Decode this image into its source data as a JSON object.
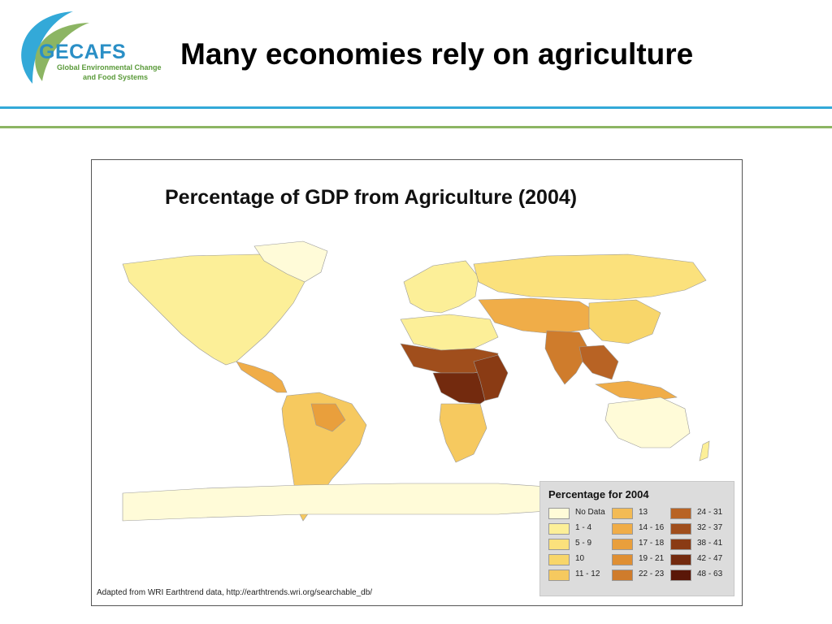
{
  "logo": {
    "word": "GECAFS",
    "line1": "Global Environmental Change",
    "line2": "and Food Systems"
  },
  "slide_title": "Many economies rely on agriculture",
  "map": {
    "title": "Percentage of GDP from Agriculture (2004)",
    "source": "Adapted from WRI Earthtrend data, http://earthtrends.wri.org/searchable_db/",
    "legend": {
      "title": "Percentage for 2004",
      "items": [
        {
          "label": "No Data",
          "color": "#fffbd8"
        },
        {
          "label": "1 - 4",
          "color": "#fcef98"
        },
        {
          "label": "5 - 9",
          "color": "#fbe17c"
        },
        {
          "label": "10",
          "color": "#f8d66a"
        },
        {
          "label": "11 - 12",
          "color": "#f6c95f"
        },
        {
          "label": "13",
          "color": "#f3bb55"
        },
        {
          "label": "14 - 16",
          "color": "#f0ad48"
        },
        {
          "label": "17 - 18",
          "color": "#e99f3c"
        },
        {
          "label": "19 - 21",
          "color": "#df8f33"
        },
        {
          "label": "22 - 23",
          "color": "#cf7c2c"
        },
        {
          "label": "24 - 31",
          "color": "#b86324"
        },
        {
          "label": "32 - 37",
          "color": "#a04e1c"
        },
        {
          "label": "38 - 41",
          "color": "#8a3b14"
        },
        {
          "label": "42 - 47",
          "color": "#732a0e"
        },
        {
          "label": "48 - 63",
          "color": "#5a1708"
        }
      ]
    }
  }
}
